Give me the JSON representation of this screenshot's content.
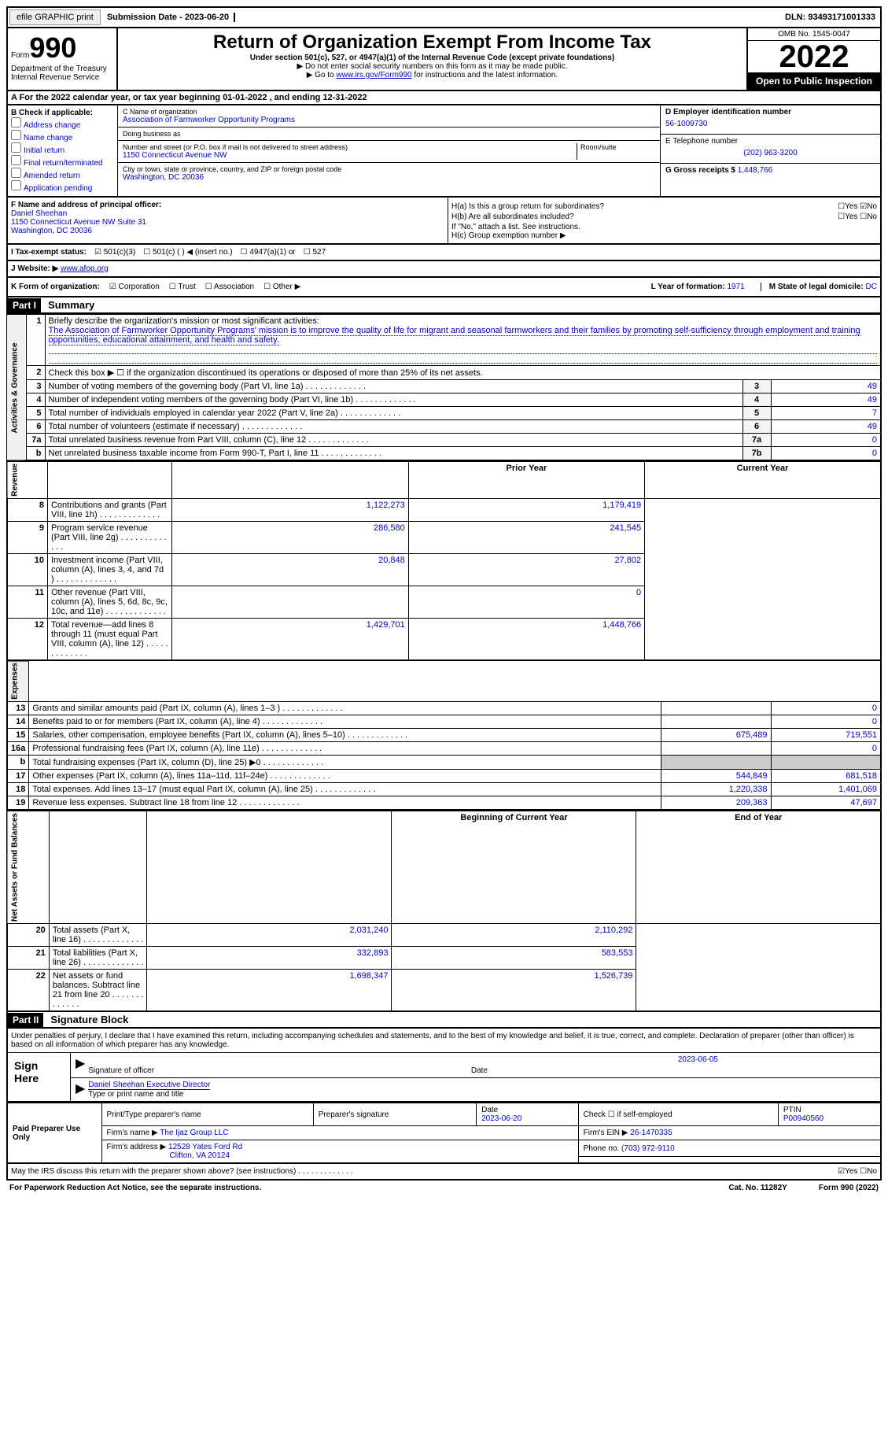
{
  "topbar": {
    "efile_btn": "efile GRAPHIC print",
    "subdate": "Submission Date - 2023-06-20",
    "dln": "DLN: 93493171001333"
  },
  "header": {
    "form_label": "Form",
    "form_no": "990",
    "dept": "Department of the Treasury Internal Revenue Service",
    "title": "Return of Organization Exempt From Income Tax",
    "subsec": "Under section 501(c), 527, or 4947(a)(1) of the Internal Revenue Code (except private foundations)",
    "note1": "▶ Do not enter social security numbers on this form as it may be made public.",
    "note2_pre": "▶ Go to ",
    "note2_link": "www.irs.gov/Form990",
    "note2_post": " for instructions and the latest information.",
    "omb": "OMB No. 1545-0047",
    "year": "2022",
    "open": "Open to Public Inspection"
  },
  "row_a": "A For the 2022 calendar year, or tax year beginning 01-01-2022    , and ending 12-31-2022",
  "col_b": {
    "label": "B Check if applicable:",
    "opts": [
      "Address change",
      "Name change",
      "Initial return",
      "Final return/terminated",
      "Amended return",
      "Application pending"
    ]
  },
  "col_c": {
    "name_label": "C Name of organization",
    "name": "Association of Farmworker Opportunity Programs",
    "dba_label": "Doing business as",
    "dba": "",
    "addr_label": "Number and street (or P.O. box if mail is not delivered to street address)",
    "addr": "1150 Connecticut Avenue NW",
    "room_label": "Room/suite",
    "city_label": "City or town, state or province, country, and ZIP or foreign postal code",
    "city": "Washington, DC  20036"
  },
  "col_d": {
    "ein_label": "D Employer identification number",
    "ein": "56-1009730",
    "tel_label": "E Telephone number",
    "tel": "(202) 963-3200",
    "gross_label": "G Gross receipts $",
    "gross": "1,448,766"
  },
  "row_f": {
    "label": "F  Name and address of principal officer:",
    "name": "Daniel Sheehan",
    "addr1": "1150 Connecticut Avenue NW Suite 31",
    "addr2": "Washington, DC  20036",
    "ha": "H(a)  Is this a group return for subordinates?",
    "hb": "H(b)  Are all subordinates included?",
    "hb_note": "If \"No,\" attach a list. See instructions.",
    "hc": "H(c)  Group exemption number ▶",
    "yes": "Yes",
    "no": "No"
  },
  "row_i": {
    "label": "I  Tax-exempt status:",
    "o501c3": "501(c)(3)",
    "o501c": "501(c) (  ) ◀ (insert no.)",
    "o4947": "4947(a)(1) or",
    "o527": "527"
  },
  "row_j": {
    "label": "J  Website: ▶",
    "url": "www.afop.org"
  },
  "row_k": {
    "label": "K Form of organization:",
    "corp": "Corporation",
    "trust": "Trust",
    "assoc": "Association",
    "other": "Other ▶",
    "year_label": "L Year of formation:",
    "year": "1971",
    "state_label": "M State of legal domicile:",
    "state": "DC"
  },
  "parts": {
    "p1": "Part I",
    "p1_title": "Summary",
    "p2": "Part II",
    "p2_title": "Signature Block"
  },
  "summary": {
    "side1": "Activities & Governance",
    "side2": "Revenue",
    "side3": "Expenses",
    "side4": "Net Assets or Fund Balances",
    "l1_label": "Briefly describe the organization's mission or most significant activities:",
    "l1_text": "The Association of Farmworker Opportunity Programs' mission is to improve the quality of life for migrant and seasonal farmworkers and their families by promoting self-sufficiency through employment and training opportunities, educational attainment, and health and safety.",
    "l2": "Check this box ▶ ☐  if the organization discontinued its operations or disposed of more than 25% of its net assets.",
    "prior_year": "Prior Year",
    "current_year": "Current Year",
    "begin_year": "Beginning of Current Year",
    "end_year": "End of Year",
    "rows_top": [
      {
        "n": "3",
        "d": "Number of voting members of the governing body (Part VI, line 1a)",
        "box": "3",
        "v": "49"
      },
      {
        "n": "4",
        "d": "Number of independent voting members of the governing body (Part VI, line 1b)",
        "box": "4",
        "v": "49"
      },
      {
        "n": "5",
        "d": "Total number of individuals employed in calendar year 2022 (Part V, line 2a)",
        "box": "5",
        "v": "7"
      },
      {
        "n": "6",
        "d": "Total number of volunteers (estimate if necessary)",
        "box": "6",
        "v": "49"
      },
      {
        "n": "7a",
        "d": "Total unrelated business revenue from Part VIII, column (C), line 12",
        "box": "7a",
        "v": "0"
      },
      {
        "n": "b",
        "d": "Net unrelated business taxable income from Form 990-T, Part I, line 11",
        "box": "7b",
        "v": "0"
      }
    ],
    "rows_rev": [
      {
        "n": "8",
        "d": "Contributions and grants (Part VIII, line 1h)",
        "p": "1,122,273",
        "c": "1,179,419"
      },
      {
        "n": "9",
        "d": "Program service revenue (Part VIII, line 2g)",
        "p": "286,580",
        "c": "241,545"
      },
      {
        "n": "10",
        "d": "Investment income (Part VIII, column (A), lines 3, 4, and 7d )",
        "p": "20,848",
        "c": "27,802"
      },
      {
        "n": "11",
        "d": "Other revenue (Part VIII, column (A), lines 5, 6d, 8c, 9c, 10c, and 11e)",
        "p": "",
        "c": "0"
      },
      {
        "n": "12",
        "d": "Total revenue—add lines 8 through 11 (must equal Part VIII, column (A), line 12)",
        "p": "1,429,701",
        "c": "1,448,766"
      }
    ],
    "rows_exp": [
      {
        "n": "13",
        "d": "Grants and similar amounts paid (Part IX, column (A), lines 1–3 )",
        "p": "",
        "c": "0"
      },
      {
        "n": "14",
        "d": "Benefits paid to or for members (Part IX, column (A), line 4)",
        "p": "",
        "c": "0"
      },
      {
        "n": "15",
        "d": "Salaries, other compensation, employee benefits (Part IX, column (A), lines 5–10)",
        "p": "675,489",
        "c": "719,551"
      },
      {
        "n": "16a",
        "d": "Professional fundraising fees (Part IX, column (A), line 11e)",
        "p": "",
        "c": "0"
      },
      {
        "n": "b",
        "d": "Total fundraising expenses (Part IX, column (D), line 25) ▶0",
        "p": "shaded",
        "c": "shaded"
      },
      {
        "n": "17",
        "d": "Other expenses (Part IX, column (A), lines 11a–11d, 11f–24e)",
        "p": "544,849",
        "c": "681,518"
      },
      {
        "n": "18",
        "d": "Total expenses. Add lines 13–17 (must equal Part IX, column (A), line 25)",
        "p": "1,220,338",
        "c": "1,401,069"
      },
      {
        "n": "19",
        "d": "Revenue less expenses. Subtract line 18 from line 12",
        "p": "209,363",
        "c": "47,697"
      }
    ],
    "rows_net": [
      {
        "n": "20",
        "d": "Total assets (Part X, line 16)",
        "p": "2,031,240",
        "c": "2,110,292"
      },
      {
        "n": "21",
        "d": "Total liabilities (Part X, line 26)",
        "p": "332,893",
        "c": "583,553"
      },
      {
        "n": "22",
        "d": "Net assets or fund balances. Subtract line 21 from line 20",
        "p": "1,698,347",
        "c": "1,526,739"
      }
    ]
  },
  "sig": {
    "penalty": "Under penalties of perjury, I declare that I have examined this return, including accompanying schedules and statements, and to the best of my knowledge and belief, it is true, correct, and complete. Declaration of preparer (other than officer) is based on all information of which preparer has any knowledge.",
    "sign_here": "Sign Here",
    "sig_officer": "Signature of officer",
    "sig_date": "2023-06-05",
    "date_label": "Date",
    "name": "Daniel Sheehan  Executive Director",
    "name_label": "Type or print name and title",
    "paid": "Paid Preparer Use Only",
    "prep_name_label": "Print/Type preparer's name",
    "prep_sig_label": "Preparer's signature",
    "prep_date_label": "Date",
    "prep_date": "2023-06-20",
    "check_self": "Check ☐ if self-employed",
    "ptin_label": "PTIN",
    "ptin": "P00940560",
    "firm_name_label": "Firm's name    ▶",
    "firm_name": "The Ijaz Group LLC",
    "firm_ein_label": "Firm's EIN ▶",
    "firm_ein": "26-1470335",
    "firm_addr_label": "Firm's address ▶",
    "firm_addr": "12528 Yates Ford Rd",
    "firm_city": "Clifton, VA  20124",
    "phone_label": "Phone no.",
    "phone": "(703) 972-9110",
    "discuss": "May the IRS discuss this return with the preparer shown above? (see instructions)",
    "yes": "Yes",
    "no": "No"
  },
  "bottom": {
    "pra": "For Paperwork Reduction Act Notice, see the separate instructions.",
    "cat": "Cat. No. 11282Y",
    "form": "Form 990 (2022)"
  }
}
